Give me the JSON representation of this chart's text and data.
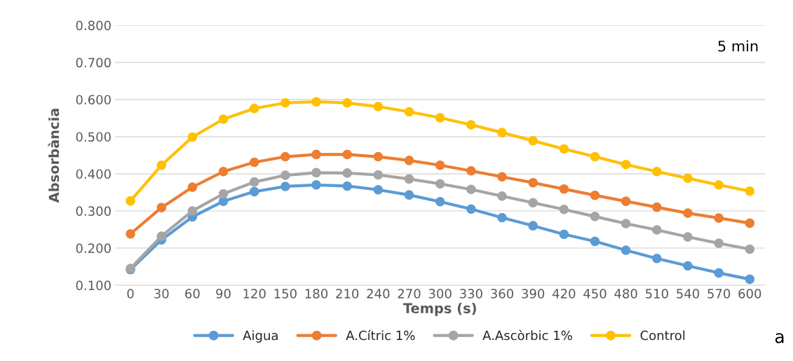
{
  "chart_data": {
    "type": "line",
    "xlabel": "Temps (s)",
    "ylabel": "Absorbància",
    "categories": [
      "0",
      "30",
      "60",
      "90",
      "120",
      "150",
      "180",
      "210",
      "240",
      "270",
      "300",
      "330",
      "360",
      "390",
      "420",
      "450",
      "480",
      "510",
      "540",
      "570",
      "600"
    ],
    "series": [
      {
        "name": "Aigua",
        "color": "#5b9bd5",
        "values": [
          0.142,
          0.222,
          0.284,
          0.326,
          0.352,
          0.366,
          0.37,
          0.367,
          0.357,
          0.343,
          0.325,
          0.305,
          0.282,
          0.26,
          0.237,
          0.218,
          0.194,
          0.172,
          0.152,
          0.133,
          0.116
        ]
      },
      {
        "name": "A.Cítric 1%",
        "color": "#ed7d31",
        "values": [
          0.238,
          0.309,
          0.364,
          0.406,
          0.431,
          0.446,
          0.452,
          0.452,
          0.446,
          0.436,
          0.423,
          0.408,
          0.392,
          0.376,
          0.359,
          0.342,
          0.326,
          0.31,
          0.294,
          0.281,
          0.267
        ]
      },
      {
        "name": "A.Ascòrbic 1%",
        "color": "#a5a5a5",
        "values": [
          0.145,
          0.232,
          0.3,
          0.346,
          0.378,
          0.396,
          0.403,
          0.402,
          0.397,
          0.386,
          0.373,
          0.358,
          0.34,
          0.322,
          0.304,
          0.285,
          0.266,
          0.249,
          0.23,
          0.213,
          0.197
        ]
      },
      {
        "name": "Control",
        "color": "#ffc000",
        "values": [
          0.327,
          0.423,
          0.499,
          0.547,
          0.576,
          0.591,
          0.594,
          0.591,
          0.581,
          0.567,
          0.551,
          0.532,
          0.511,
          0.489,
          0.467,
          0.446,
          0.425,
          0.406,
          0.388,
          0.37,
          0.353
        ]
      }
    ],
    "ylim": [
      0.1,
      0.8
    ],
    "yticks": [
      {
        "value": 0.1,
        "label": "0.100"
      },
      {
        "value": 0.2,
        "label": "0.200"
      },
      {
        "value": 0.3,
        "label": "0.300"
      },
      {
        "value": 0.4,
        "label": "0.400"
      },
      {
        "value": 0.5,
        "label": "0.500"
      },
      {
        "value": 0.6,
        "label": "0.600"
      },
      {
        "value": 0.7,
        "label": "0.700"
      },
      {
        "value": 0.8,
        "label": "0.800"
      }
    ],
    "grid": "y",
    "legend": "bottom",
    "marker": "circle",
    "line_style": "solid",
    "annotations": [
      "5 min",
      "a"
    ]
  }
}
